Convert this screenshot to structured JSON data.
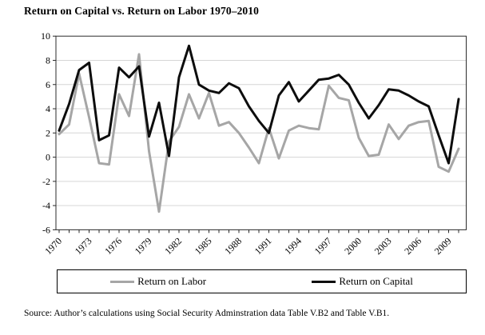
{
  "title": "Return on Capital vs. Return on Labor 1970–2010",
  "source_note": "Source: Author’s calculations using Social Security Adminstration data Table V.B2 and Table V.B1.",
  "colors": {
    "labor_line": "#a6a6a6",
    "capital_line": "#0d0d0d",
    "gridline": "#d6d6d6",
    "axis": "#2b2b2b"
  },
  "chart_data": {
    "type": "line",
    "title": "Return on Capital vs. Return on Labor 1970–2010",
    "x": [
      1970,
      1971,
      1972,
      1973,
      1974,
      1975,
      1976,
      1977,
      1978,
      1979,
      1980,
      1981,
      1982,
      1983,
      1984,
      1985,
      1986,
      1987,
      1988,
      1989,
      1990,
      1991,
      1992,
      1993,
      1994,
      1995,
      1996,
      1997,
      1998,
      1999,
      2000,
      2001,
      2002,
      2003,
      2004,
      2005,
      2006,
      2007,
      2008,
      2009,
      2010
    ],
    "series": [
      {
        "name": "Return on Labor",
        "values": [
          1.9,
          2.7,
          6.9,
          3.3,
          -0.5,
          -0.6,
          5.2,
          3.4,
          8.5,
          0.5,
          -4.5,
          1.3,
          2.5,
          5.2,
          3.2,
          5.3,
          2.6,
          2.9,
          2.0,
          0.8,
          -0.5,
          2.4,
          -0.1,
          2.2,
          2.6,
          2.4,
          2.3,
          5.9,
          4.9,
          4.7,
          1.6,
          0.1,
          0.2,
          2.7,
          1.5,
          2.6,
          2.9,
          3.0,
          -0.8,
          -1.2,
          0.7
        ]
      },
      {
        "name": "Return on Capital",
        "values": [
          2.2,
          4.4,
          7.2,
          7.8,
          1.4,
          1.8,
          7.4,
          6.6,
          7.5,
          1.7,
          4.5,
          0.1,
          6.6,
          9.2,
          6.0,
          5.5,
          5.3,
          6.1,
          5.7,
          4.2,
          3.0,
          2.0,
          5.1,
          6.2,
          4.6,
          5.5,
          6.4,
          6.5,
          6.8,
          6.0,
          4.5,
          3.2,
          4.3,
          5.6,
          5.5,
          5.1,
          4.6,
          4.2,
          1.8,
          -0.5,
          4.8
        ]
      }
    ],
    "xlabel": "",
    "ylabel": "",
    "ylim": [
      -6,
      10
    ],
    "ytick_step": 2,
    "ytick_labels": [
      "-6",
      "-4",
      "-2",
      "0",
      "2",
      "4",
      "6",
      "8",
      "10"
    ],
    "xtick_labels": [
      "1970",
      "1973",
      "1976",
      "1979",
      "1982",
      "1985",
      "1988",
      "1991",
      "1994",
      "1997",
      "2000",
      "2003",
      "2006",
      "2009"
    ],
    "xtick_label_step": 3,
    "grid": true,
    "legend_position": "bottom"
  }
}
